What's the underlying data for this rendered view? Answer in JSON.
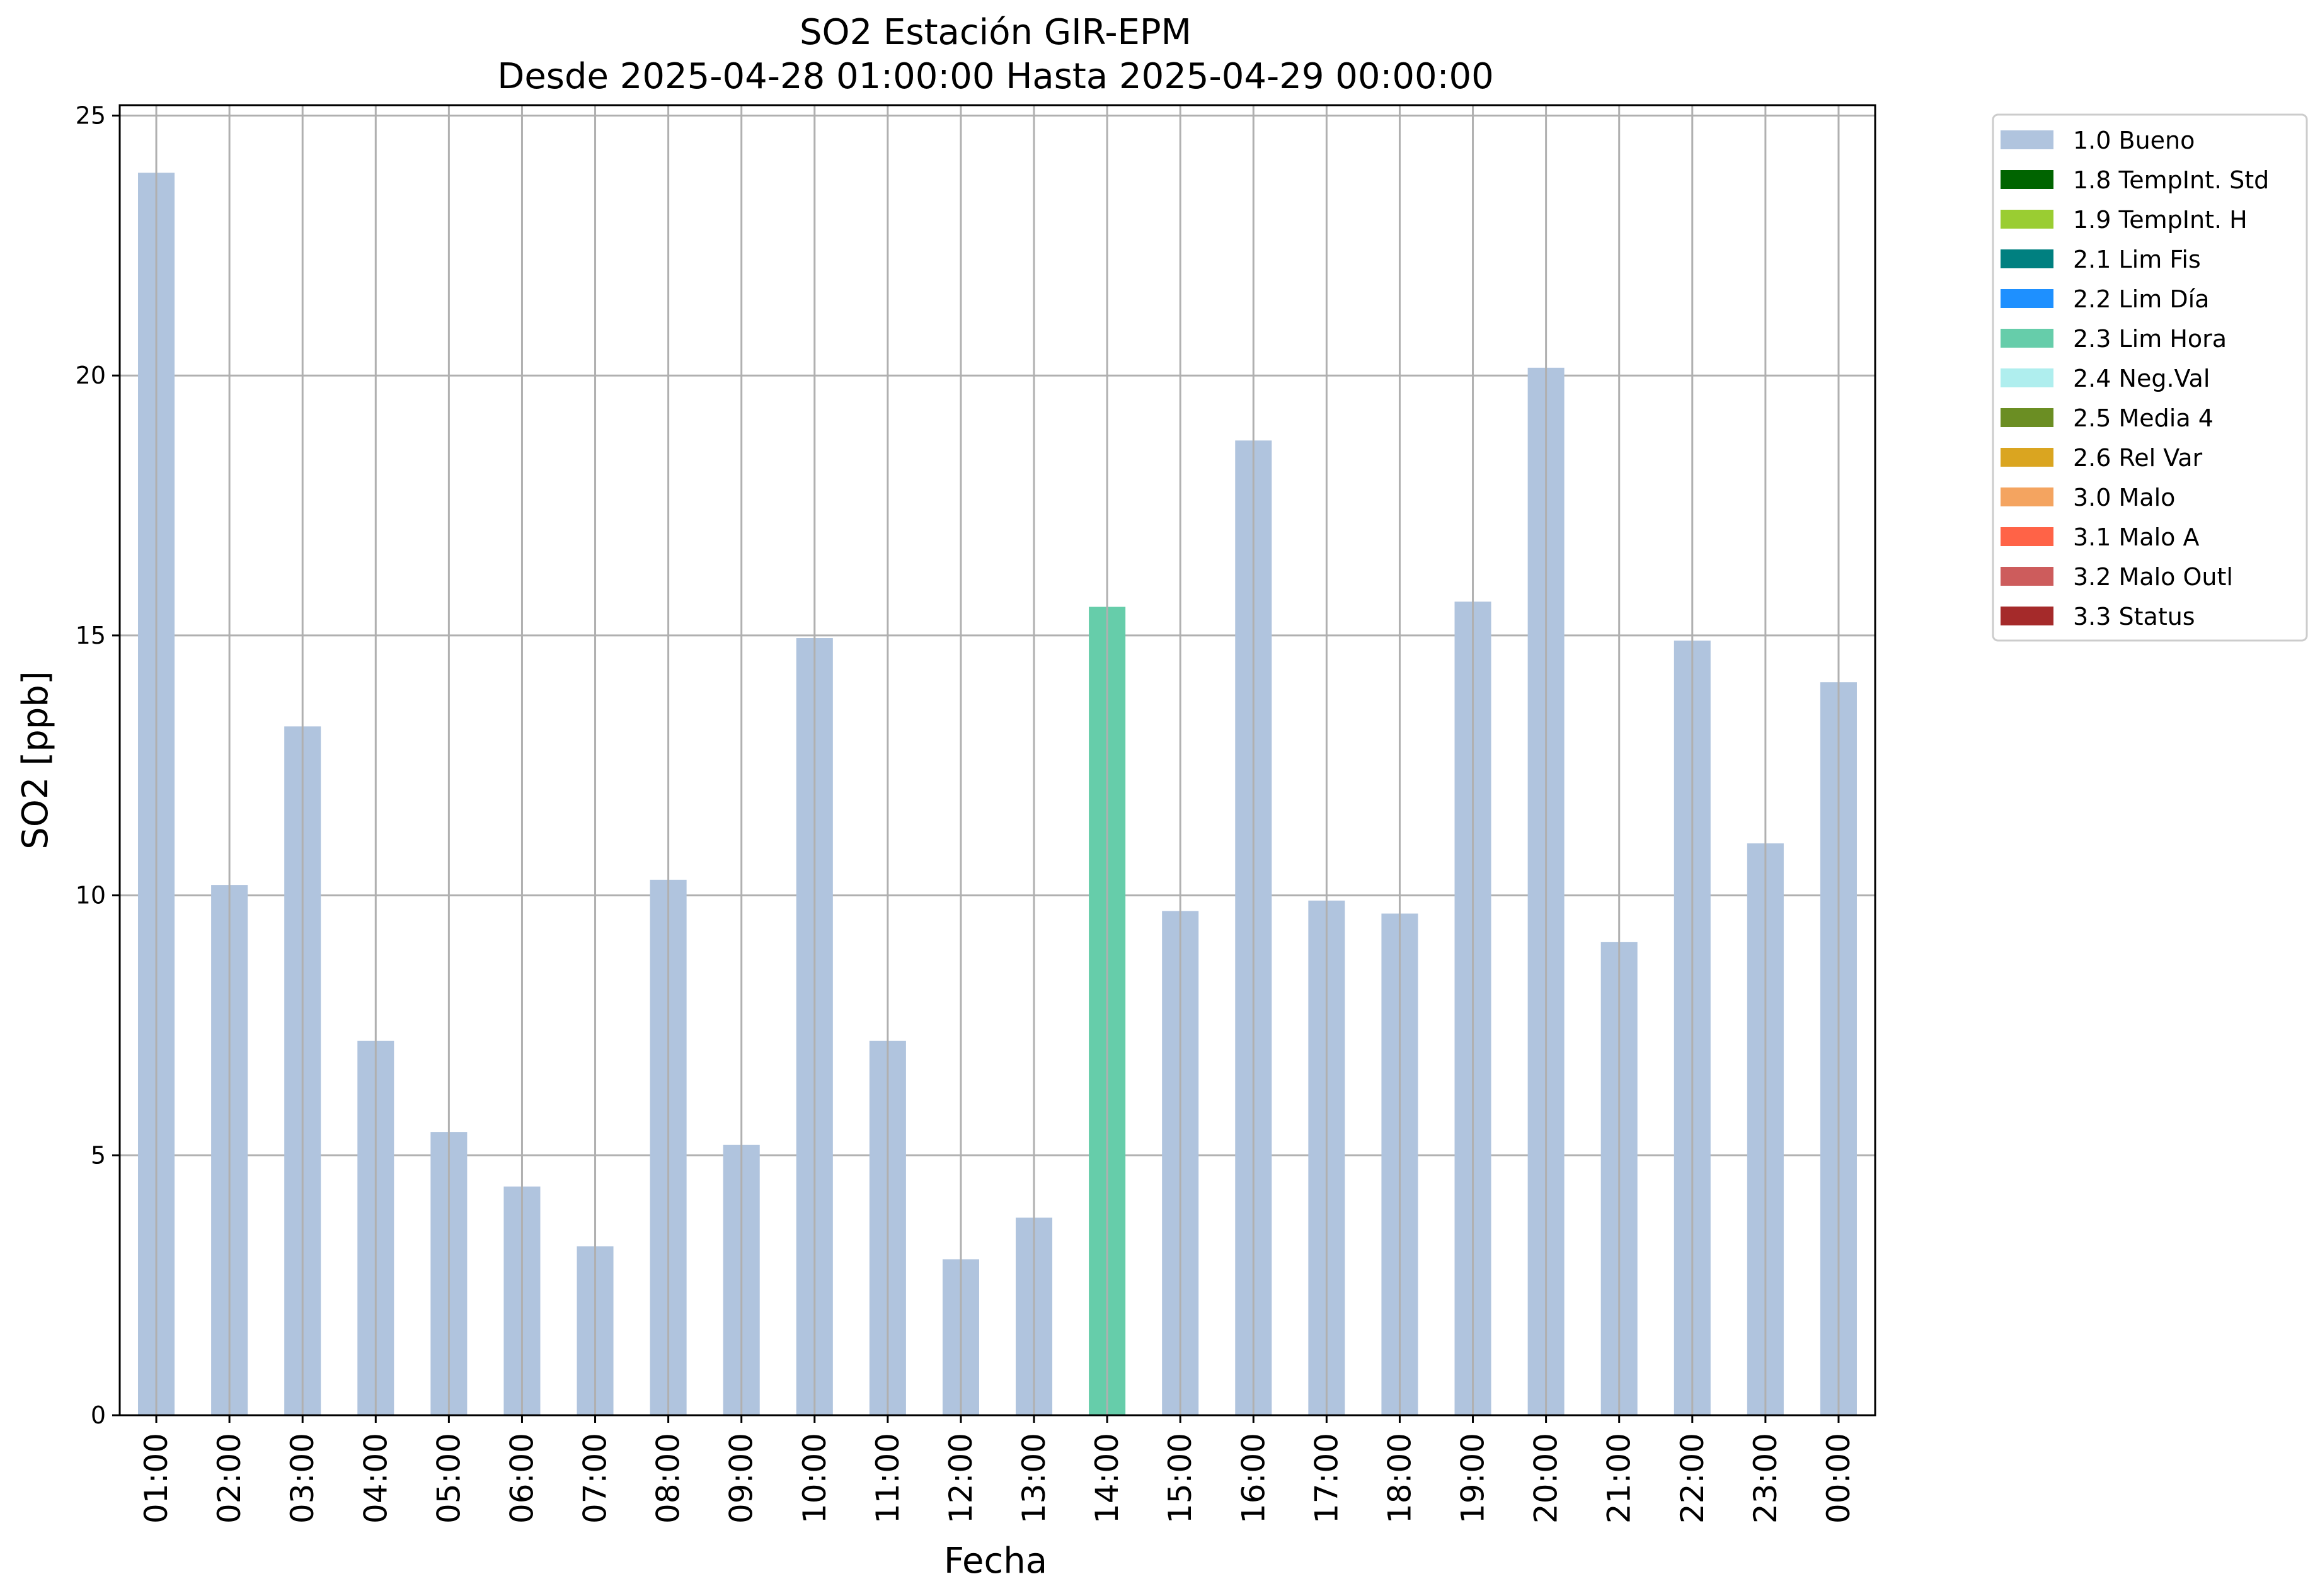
{
  "chart_data": {
    "type": "bar",
    "title": "SO2 Estación GIR-EPM",
    "subtitle": "Desde 2025-04-28 01:00:00 Hasta 2025-04-29 00:00:00",
    "xlabel": "Fecha",
    "ylabel": "SO2 [ppb]",
    "ylim": [
      0,
      25.2
    ],
    "yticks": [
      0,
      5,
      10,
      15,
      20,
      25
    ],
    "grid": true,
    "legend_position": "outside-top-right",
    "categories": [
      "01:00",
      "02:00",
      "03:00",
      "04:00",
      "05:00",
      "06:00",
      "07:00",
      "08:00",
      "09:00",
      "10:00",
      "11:00",
      "12:00",
      "13:00",
      "14:00",
      "15:00",
      "16:00",
      "17:00",
      "18:00",
      "19:00",
      "20:00",
      "21:00",
      "22:00",
      "23:00",
      "00:00"
    ],
    "values": [
      23.9,
      10.2,
      13.25,
      7.2,
      5.45,
      4.4,
      3.25,
      10.3,
      5.2,
      14.95,
      7.2,
      3.0,
      3.8,
      15.55,
      9.7,
      18.75,
      9.9,
      9.65,
      15.65,
      20.15,
      9.1,
      14.9,
      11.0,
      14.1
    ],
    "flags": [
      "1.0 Bueno",
      "1.0 Bueno",
      "1.0 Bueno",
      "1.0 Bueno",
      "1.0 Bueno",
      "1.0 Bueno",
      "1.0 Bueno",
      "1.0 Bueno",
      "1.0 Bueno",
      "1.0 Bueno",
      "1.0 Bueno",
      "1.0 Bueno",
      "1.0 Bueno",
      "2.3 Lim Hora",
      "1.0 Bueno",
      "1.0 Bueno",
      "1.0 Bueno",
      "1.0 Bueno",
      "1.0 Bueno",
      "1.0 Bueno",
      "1.0 Bueno",
      "1.0 Bueno",
      "1.0 Bueno",
      "1.0 Bueno"
    ],
    "legend": [
      {
        "name": "1.0 Bueno",
        "color": "#b0c4de"
      },
      {
        "name": "1.8 TempInt. Std",
        "color": "#006400"
      },
      {
        "name": "1.9 TempInt. H",
        "color": "#9acd32"
      },
      {
        "name": "2.1 Lim Fis",
        "color": "#008080"
      },
      {
        "name": "2.2 Lim Día",
        "color": "#1e90ff"
      },
      {
        "name": "2.3 Lim Hora",
        "color": "#66cdaa"
      },
      {
        "name": "2.4 Neg.Val",
        "color": "#afeeee"
      },
      {
        "name": "2.5 Media 4",
        "color": "#6b8e23"
      },
      {
        "name": "2.6 Rel Var",
        "color": "#daa520"
      },
      {
        "name": "3.0 Malo",
        "color": "#f4a460"
      },
      {
        "name": "3.1 Malo A",
        "color": "#ff6347"
      },
      {
        "name": "3.2 Malo Outl",
        "color": "#cd5c5c"
      },
      {
        "name": "3.3 Status",
        "color": "#a52a2a"
      }
    ]
  }
}
